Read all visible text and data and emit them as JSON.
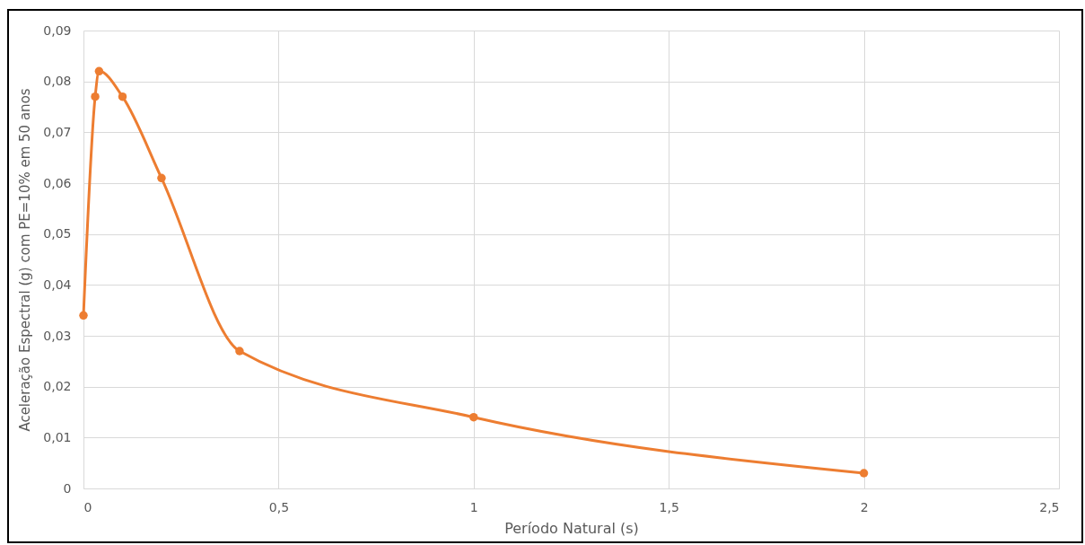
{
  "chart_data": {
    "type": "line",
    "xlabel": "Período Natural (s)",
    "ylabel": "Aceleração Espectral (g) com PE=10% em 50 anos",
    "x": [
      0,
      0.03,
      0.04,
      0.1,
      0.2,
      0.4,
      1,
      2
    ],
    "series": [
      {
        "color": "#ed7d31",
        "values": [
          0.034,
          0.077,
          0.082,
          0.077,
          0.061,
          0.027,
          0.014,
          0.003
        ]
      }
    ],
    "xlim": [
      0,
      2.5
    ],
    "xticks": [
      {
        "value": 0,
        "label": "0"
      },
      {
        "value": 0.5,
        "label": "0,5"
      },
      {
        "value": 1,
        "label": "1"
      },
      {
        "value": 1.5,
        "label": "1,5"
      },
      {
        "value": 2,
        "label": "2"
      },
      {
        "value": 2.5,
        "label": "2,5"
      }
    ],
    "ylim": [
      0,
      0.09
    ],
    "yticks": [
      {
        "value": 0,
        "label": "0"
      },
      {
        "value": 0.01,
        "label": "0,01"
      },
      {
        "value": 0.02,
        "label": "0,02"
      },
      {
        "value": 0.03,
        "label": "0,03"
      },
      {
        "value": 0.04,
        "label": "0,04"
      },
      {
        "value": 0.05,
        "label": "0,05"
      },
      {
        "value": 0.06,
        "label": "0,06"
      },
      {
        "value": 0.07,
        "label": "0,07"
      },
      {
        "value": 0.08,
        "label": "0,08"
      },
      {
        "value": 0.09,
        "label": "0,09"
      }
    ],
    "grid": true,
    "marker": "circle",
    "line_style": "solid",
    "legend": false
  }
}
